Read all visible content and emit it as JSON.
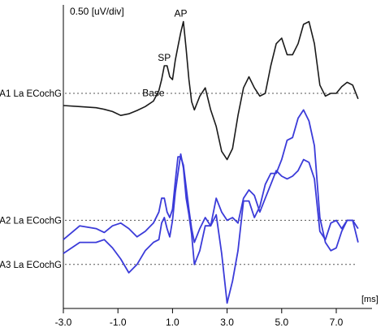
{
  "chart_data": {
    "type": "line",
    "title": "",
    "scale_label": "0.50 [uV/div]",
    "unit_label": "[ms]",
    "xlim": [
      -3.0,
      8.0
    ],
    "x_ticks": [
      -3.0,
      -1.0,
      1.0,
      3.0,
      5.0,
      7.0
    ],
    "x_tick_labels": [
      "-3.0",
      "-1.0",
      "1.0",
      "3.0",
      "5.0",
      "7.0"
    ],
    "grid": false,
    "colors": {
      "A1": "#1a1a1a",
      "A2": "#3b3bd9",
      "A3": "#3b3bd9",
      "baseline": "#555555",
      "axis": "#000000"
    },
    "series": [
      {
        "name": "A1 La ECochG",
        "baseline_uV": 0,
        "offset_uV": 0,
        "x": [
          -3.0,
          -2.4,
          -1.8,
          -1.5,
          -1.2,
          -0.9,
          -0.6,
          -0.3,
          0.0,
          0.3,
          0.5,
          0.6,
          0.7,
          0.8,
          0.9,
          1.0,
          1.1,
          1.2,
          1.3,
          1.4,
          1.5,
          1.6,
          1.7,
          1.8,
          2.0,
          2.2,
          2.4,
          2.6,
          2.8,
          3.0,
          3.2,
          3.4,
          3.6,
          3.8,
          4.0,
          4.2,
          4.4,
          4.6,
          4.8,
          5.0,
          5.2,
          5.4,
          5.6,
          5.8,
          6.0,
          6.2,
          6.4,
          6.6,
          6.8,
          7.0,
          7.2,
          7.4,
          7.6,
          7.8
        ],
        "y": [
          -0.44,
          -0.48,
          -0.52,
          -0.58,
          -0.66,
          -0.8,
          -0.74,
          -0.62,
          -0.48,
          -0.28,
          0.1,
          0.5,
          1.0,
          1.0,
          0.6,
          0.5,
          1.2,
          1.7,
          2.2,
          2.6,
          1.6,
          0.5,
          -0.3,
          -0.6,
          -0.1,
          0.2,
          -0.6,
          -1.2,
          -2.1,
          -2.4,
          -2.0,
          -0.8,
          0.2,
          0.6,
          0.2,
          -0.1,
          0.0,
          1.0,
          1.8,
          2.0,
          1.4,
          1.4,
          1.8,
          2.5,
          2.6,
          1.8,
          0.3,
          -0.1,
          0.0,
          0.0,
          0.24,
          0.4,
          0.3,
          -0.2
        ],
        "annotations": [
          {
            "text": "AP",
            "x": 1.3,
            "y": 2.6
          },
          {
            "text": "SP",
            "x": 0.7,
            "y": 1.0
          },
          {
            "text": "Base",
            "x": 0.3,
            "y": -0.28
          }
        ]
      },
      {
        "name": "A2 La ECochG",
        "baseline_uV": -4.6,
        "offset_uV": -4.6,
        "x": [
          -3.0,
          -2.4,
          -1.8,
          -1.5,
          -1.2,
          -0.9,
          -0.6,
          -0.3,
          0.0,
          0.3,
          0.5,
          0.6,
          0.7,
          0.8,
          0.9,
          1.0,
          1.1,
          1.2,
          1.3,
          1.4,
          1.5,
          1.6,
          1.7,
          1.8,
          2.0,
          2.2,
          2.4,
          2.6,
          2.8,
          3.0,
          3.2,
          3.4,
          3.6,
          3.8,
          4.0,
          4.2,
          4.4,
          4.6,
          4.8,
          5.0,
          5.2,
          5.4,
          5.6,
          5.8,
          6.0,
          6.2,
          6.4,
          6.6,
          6.8,
          7.0,
          7.2,
          7.4,
          7.6,
          7.8
        ],
        "y": [
          -0.7,
          -0.2,
          -0.3,
          -0.44,
          -0.2,
          -0.1,
          -0.3,
          -0.6,
          -0.4,
          -0.1,
          0.3,
          0.8,
          0.8,
          0.3,
          0.1,
          0.4,
          1.4,
          2.3,
          2.3,
          2.0,
          1.2,
          0.4,
          -0.3,
          -0.8,
          -0.3,
          0.1,
          -0.2,
          0.8,
          0.3,
          0.0,
          0.1,
          -0.1,
          0.8,
          1.1,
          0.9,
          0.3,
          0.8,
          1.3,
          1.8,
          1.6,
          1.5,
          1.6,
          1.8,
          2.2,
          2.1,
          1.5,
          -0.4,
          -0.7,
          -0.1,
          0.0,
          -0.3,
          0.0,
          0.0,
          -0.3
        ]
      },
      {
        "name": "A3 La ECochG",
        "baseline_uV": -6.2,
        "offset_uV": -6.2,
        "x": [
          -3.0,
          -2.4,
          -1.8,
          -1.5,
          -1.2,
          -0.9,
          -0.6,
          -0.3,
          0.0,
          0.3,
          0.5,
          0.6,
          0.7,
          0.8,
          0.9,
          1.0,
          1.1,
          1.2,
          1.3,
          1.4,
          1.5,
          1.6,
          1.7,
          1.8,
          2.0,
          2.2,
          2.4,
          2.6,
          2.8,
          3.0,
          3.2,
          3.4,
          3.6,
          3.8,
          4.0,
          4.2,
          4.4,
          4.6,
          4.8,
          5.0,
          5.2,
          5.4,
          5.6,
          5.8,
          6.0,
          6.2,
          6.4,
          6.6,
          6.8,
          7.0,
          7.2,
          7.4,
          7.6,
          7.8
        ],
        "y": [
          0.4,
          0.8,
          0.8,
          0.9,
          0.6,
          0.2,
          -0.3,
          0.0,
          0.5,
          0.8,
          0.9,
          1.5,
          1.7,
          1.3,
          1.0,
          1.6,
          2.6,
          3.3,
          4.0,
          3.5,
          2.4,
          1.8,
          1.1,
          0.0,
          0.5,
          1.4,
          1.4,
          1.8,
          0.4,
          -1.4,
          -0.6,
          0.5,
          2.3,
          2.3,
          1.7,
          2.1,
          2.9,
          3.3,
          3.3,
          3.8,
          4.5,
          4.6,
          5.3,
          5.6,
          5.2,
          4.3,
          1.7,
          0.8,
          0.5,
          0.6,
          1.2,
          1.6,
          1.6,
          0.8
        ]
      }
    ]
  }
}
